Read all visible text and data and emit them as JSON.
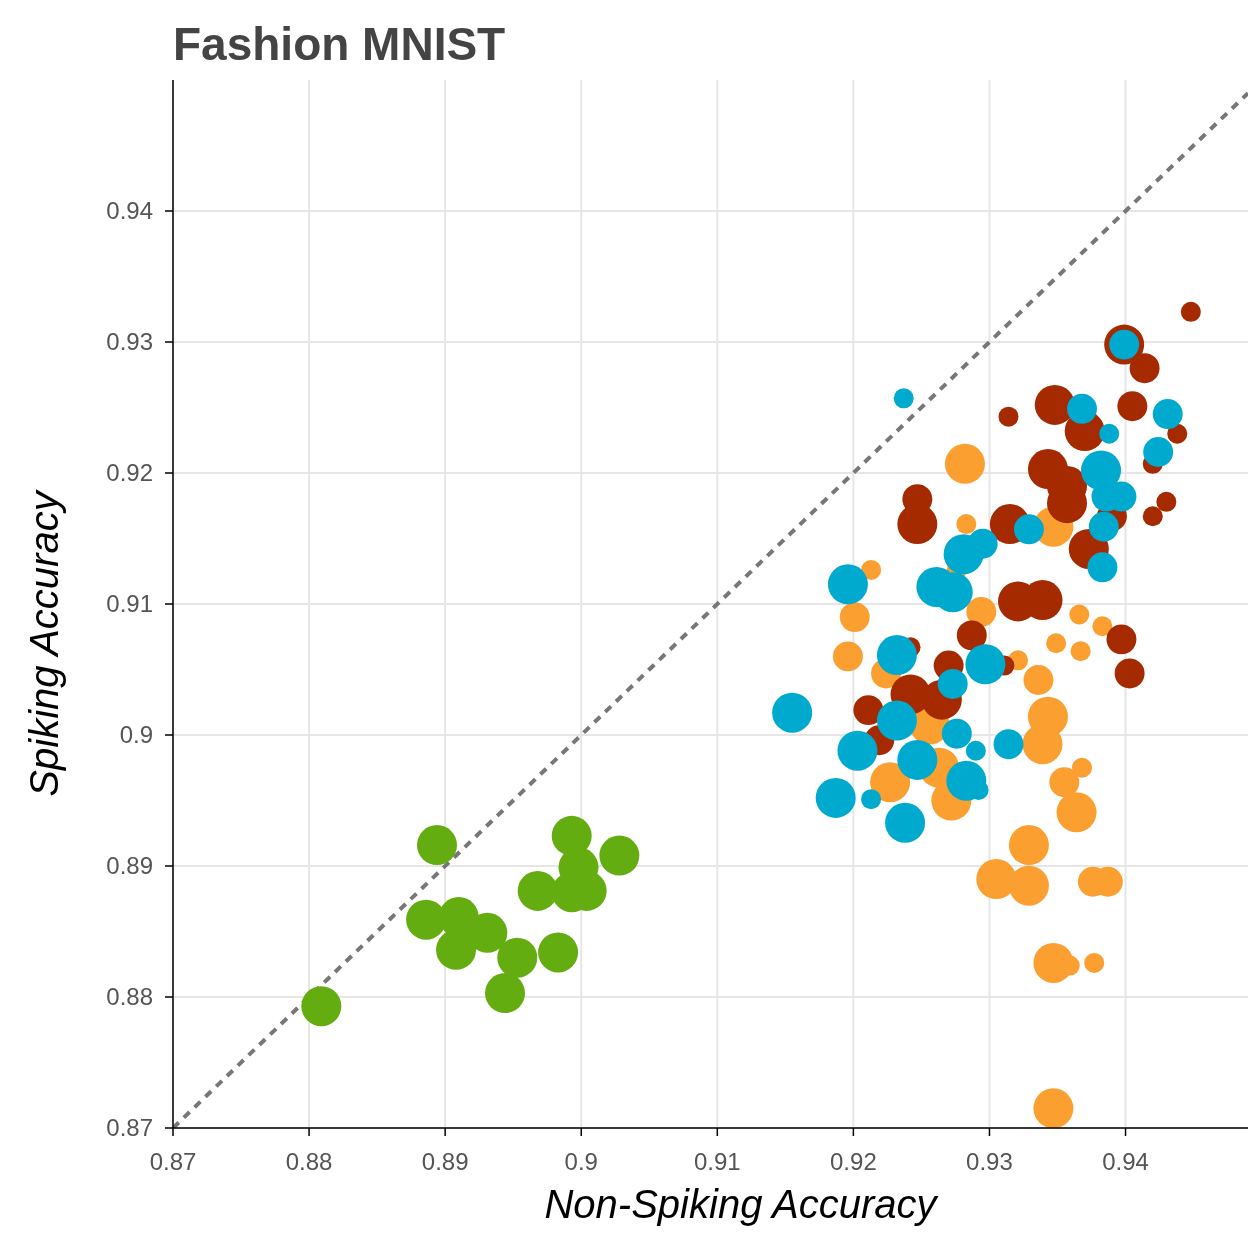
{
  "chart_data": {
    "type": "bubble",
    "title": "Fashion MNIST",
    "xlabel": "Non-Spiking Accuracy",
    "ylabel": "Spiking Accuracy",
    "xlim": [
      0.87,
      0.949
    ],
    "ylim": [
      0.87,
      0.95
    ],
    "xticks": [
      0.87,
      0.88,
      0.89,
      0.9,
      0.91,
      0.92,
      0.93,
      0.94
    ],
    "yticks": [
      0.87,
      0.88,
      0.89,
      0.9,
      0.91,
      0.92,
      0.93,
      0.94
    ],
    "grid": true,
    "series": [
      {
        "type": "line",
        "color": "#777777",
        "line_style": "dashed",
        "x": [
          0.87,
          0.949
        ],
        "values": [
          0.87,
          0.949
        ]
      },
      {
        "color": "#64ad10",
        "marker": "circle",
        "x": [
          0.8809,
          0.8894,
          0.8886,
          0.891,
          0.8908,
          0.8931,
          0.8944,
          0.8953,
          0.8968,
          0.8983,
          0.8993,
          0.8998,
          0.8993,
          0.9004,
          0.9028
        ],
        "values": [
          0.8793,
          0.8916,
          0.8859,
          0.8861,
          0.8836,
          0.8849,
          0.8803,
          0.883,
          0.8881,
          0.8834,
          0.8923,
          0.8899,
          0.888,
          0.8881,
          0.8908
        ],
        "sizes": [
          1,
          1,
          1,
          1,
          1,
          1,
          1,
          1,
          1,
          1,
          1,
          1,
          1,
          1,
          1
        ]
      },
      {
        "color": "#fb9f30",
        "marker": "circle",
        "x": [
          0.9282,
          0.9347,
          0.9283,
          0.9213,
          0.9276,
          0.9201,
          0.9294,
          0.9196,
          0.9224,
          0.9321,
          0.9349,
          0.9367,
          0.9366,
          0.9383,
          0.9256,
          0.9263,
          0.9272,
          0.9227,
          0.9336,
          0.9343,
          0.9339,
          0.9368,
          0.9355,
          0.9364,
          0.9329,
          0.9305,
          0.9329,
          0.9376,
          0.9387,
          0.9347,
          0.9359,
          0.9377,
          0.9347
        ],
        "values": [
          0.9207,
          0.9159,
          0.9161,
          0.9126,
          0.9126,
          0.909,
          0.9094,
          0.906,
          0.9047,
          0.9057,
          0.907,
          0.9064,
          0.9092,
          0.9083,
          0.9008,
          0.8975,
          0.895,
          0.8964,
          0.9042,
          0.9014,
          0.8993,
          0.8975,
          0.8964,
          0.8941,
          0.8916,
          0.889,
          0.8885,
          0.8888,
          0.8888,
          0.8826,
          0.8824,
          0.8826,
          0.8715
        ],
        "sizes": [
          1,
          1,
          0.25,
          0.25,
          0.25,
          0.56,
          0.56,
          0.56,
          0.56,
          0.25,
          0.25,
          0.25,
          0.25,
          0.25,
          1,
          1,
          1,
          1,
          0.56,
          1,
          1,
          0.25,
          0.56,
          1,
          1,
          1,
          1,
          0.56,
          0.56,
          1,
          0.25,
          0.25,
          1
        ]
      },
      {
        "color": "#a52a00",
        "marker": "circle",
        "x": [
          0.9448,
          0.9399,
          0.9414,
          0.9314,
          0.9348,
          0.937,
          0.9405,
          0.9438,
          0.942,
          0.9343,
          0.9357,
          0.9357,
          0.943,
          0.942,
          0.939,
          0.9315,
          0.9373,
          0.9247,
          0.9247,
          0.9321,
          0.9339,
          0.9287,
          0.9311,
          0.9397,
          0.9403,
          0.9242,
          0.927,
          0.9242,
          0.9265,
          0.9211,
          0.9219
        ],
        "values": [
          0.9323,
          0.9298,
          0.928,
          0.9243,
          0.9252,
          0.9232,
          0.9251,
          0.923,
          0.9207,
          0.9203,
          0.919,
          0.9177,
          0.9178,
          0.9167,
          0.9167,
          0.9161,
          0.9142,
          0.918,
          0.9161,
          0.9102,
          0.9103,
          0.9076,
          0.9053,
          0.9073,
          0.9047,
          0.9067,
          0.9053,
          0.9031,
          0.9027,
          0.9019,
          0.8996
        ],
        "sizes": [
          0.25,
          1,
          0.56,
          0.25,
          1,
          1,
          0.56,
          0.25,
          0.25,
          1,
          1,
          1,
          0.25,
          0.25,
          0.56,
          1,
          1,
          0.56,
          1,
          1,
          1,
          0.56,
          0.25,
          0.56,
          0.56,
          0.25,
          0.56,
          1,
          1,
          0.56,
          0.56
        ]
      },
      {
        "color": "#00a9ce",
        "marker": "circle",
        "x": [
          0.9237,
          0.9399,
          0.9368,
          0.9388,
          0.9431,
          0.9424,
          0.9382,
          0.9386,
          0.9397,
          0.9384,
          0.9383,
          0.9329,
          0.9295,
          0.9281,
          0.9196,
          0.9261,
          0.9273,
          0.9232,
          0.9297,
          0.9273,
          0.9155,
          0.9232,
          0.9203,
          0.9247,
          0.9276,
          0.929,
          0.9314,
          0.9187,
          0.9213,
          0.9238,
          0.9283,
          0.9292
        ],
        "values": [
          0.9257,
          0.9298,
          0.9249,
          0.923,
          0.9245,
          0.9216,
          0.9202,
          0.9182,
          0.9182,
          0.9159,
          0.9128,
          0.9157,
          0.9146,
          0.9138,
          0.9115,
          0.9113,
          0.9109,
          0.9061,
          0.9054,
          0.9039,
          0.9017,
          0.9011,
          0.8988,
          0.8981,
          0.9001,
          0.8988,
          0.8993,
          0.8952,
          0.8951,
          0.8933,
          0.8965,
          0.8958
        ],
        "sizes": [
          0.25,
          0.56,
          0.56,
          0.25,
          0.56,
          0.56,
          1,
          0.56,
          0.56,
          0.56,
          0.56,
          0.56,
          0.56,
          1,
          1,
          1,
          1,
          1,
          1,
          0.56,
          1,
          1,
          1,
          1,
          0.56,
          0.25,
          0.56,
          1,
          0.25,
          1,
          1,
          0.25
        ]
      }
    ]
  }
}
